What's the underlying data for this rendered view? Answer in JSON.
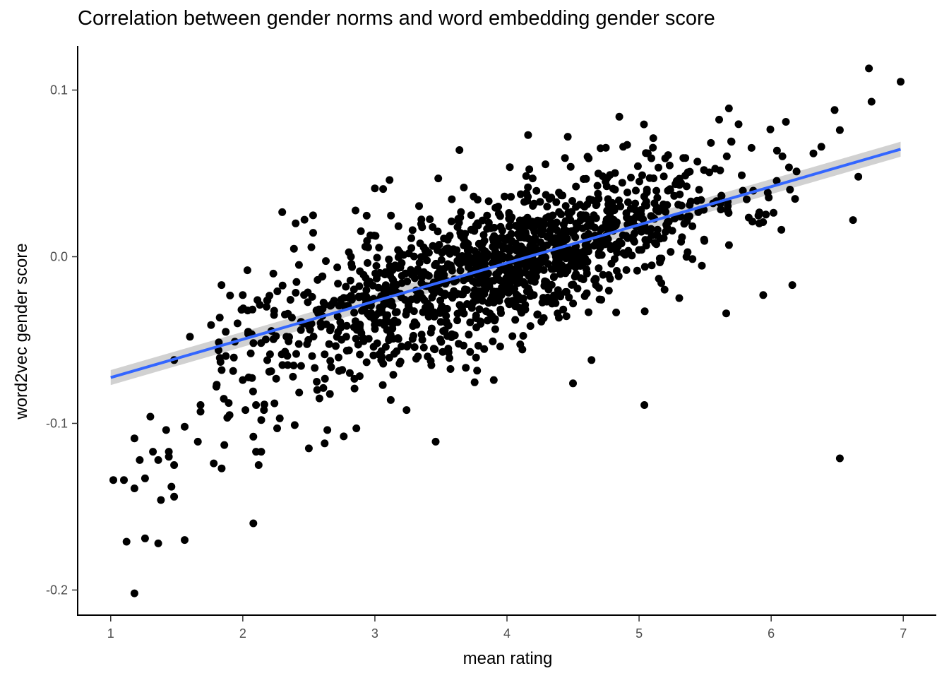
{
  "chart_data": {
    "type": "scatter",
    "title": "Correlation between gender norms and word embedding gender score",
    "xlabel": "mean rating",
    "ylabel": "word2vec gender score",
    "xlim": [
      0.75,
      7.25
    ],
    "ylim": [
      -0.2155,
      0.1265
    ],
    "x_ticks": [
      1,
      2,
      3,
      4,
      5,
      6,
      7
    ],
    "x_tick_labels": [
      "1",
      "2",
      "3",
      "4",
      "5",
      "6",
      "7"
    ],
    "y_ticks": [
      -0.2,
      -0.1,
      0.0,
      0.1
    ],
    "y_tick_labels": [
      "-0.2",
      "-0.1",
      "0.0",
      "0.1"
    ],
    "grid": false,
    "legend": "none",
    "point_color": "#000000",
    "fit_line": {
      "method": "linear",
      "color": "#3366FF",
      "band_color": "#BEBEBE",
      "x": [
        1.0,
        6.98
      ],
      "y": [
        -0.0725,
        0.0645
      ],
      "se_halfwidth": [
        0.0045,
        0.0045
      ]
    },
    "series": [
      {
        "outliers": [
          [
            1.02,
            -0.134
          ],
          [
            1.1,
            -0.134
          ],
          [
            1.18,
            -0.109
          ],
          [
            1.18,
            -0.139
          ],
          [
            1.12,
            -0.171
          ],
          [
            1.18,
            -0.202
          ],
          [
            1.22,
            -0.122
          ],
          [
            1.26,
            -0.133
          ],
          [
            1.26,
            -0.169
          ],
          [
            1.3,
            -0.096
          ],
          [
            1.32,
            -0.117
          ],
          [
            1.36,
            -0.122
          ],
          [
            1.36,
            -0.172
          ],
          [
            1.38,
            -0.146
          ],
          [
            1.42,
            -0.104
          ],
          [
            1.44,
            -0.117
          ],
          [
            1.44,
            -0.12
          ],
          [
            1.46,
            -0.138
          ],
          [
            1.48,
            -0.125
          ],
          [
            1.48,
            -0.144
          ],
          [
            1.48,
            -0.062
          ],
          [
            1.56,
            -0.102
          ],
          [
            1.56,
            -0.17
          ],
          [
            1.6,
            -0.048
          ],
          [
            1.66,
            -0.111
          ],
          [
            1.68,
            -0.089
          ],
          [
            1.68,
            -0.093
          ],
          [
            1.76,
            -0.041
          ],
          [
            1.78,
            -0.124
          ],
          [
            1.8,
            -0.078
          ],
          [
            1.84,
            -0.127
          ],
          [
            1.84,
            -0.068
          ],
          [
            1.86,
            -0.113
          ],
          [
            1.9,
            -0.095
          ],
          [
            1.94,
            -0.051
          ],
          [
            1.96,
            -0.04
          ],
          [
            2.0,
            -0.074
          ],
          [
            2.0,
            -0.023
          ],
          [
            2.02,
            -0.092
          ],
          [
            2.06,
            -0.058
          ],
          [
            2.08,
            -0.108
          ],
          [
            2.08,
            -0.16
          ],
          [
            2.1,
            -0.089
          ],
          [
            2.1,
            -0.117
          ],
          [
            2.12,
            -0.125
          ],
          [
            2.14,
            -0.098
          ],
          [
            2.14,
            -0.117
          ],
          [
            2.16,
            -0.092
          ],
          [
            2.18,
            -0.03
          ],
          [
            2.2,
            -0.069
          ],
          [
            2.24,
            -0.088
          ],
          [
            2.26,
            -0.103
          ],
          [
            2.28,
            -0.097
          ],
          [
            2.3,
            -0.065
          ],
          [
            2.32,
            -0.057
          ],
          [
            2.34,
            -0.065
          ],
          [
            2.38,
            -0.072
          ],
          [
            2.4,
            0.02
          ],
          [
            2.5,
            -0.115
          ],
          [
            2.56,
            -0.075
          ],
          [
            2.58,
            -0.085
          ],
          [
            2.62,
            -0.112
          ],
          [
            2.64,
            -0.104
          ],
          [
            2.86,
            -0.103
          ],
          [
            3.0,
            0.041
          ],
          [
            3.06,
            -0.077
          ],
          [
            3.12,
            -0.086
          ],
          [
            3.24,
            -0.092
          ],
          [
            3.46,
            -0.111
          ],
          [
            3.48,
            0.047
          ],
          [
            3.64,
            0.064
          ],
          [
            3.9,
            -0.074
          ],
          [
            4.16,
            0.073
          ],
          [
            4.46,
            0.072
          ],
          [
            4.5,
            -0.076
          ],
          [
            4.64,
            -0.062
          ],
          [
            4.88,
            0.066
          ],
          [
            5.04,
            -0.089
          ],
          [
            5.22,
            0.061
          ],
          [
            5.66,
            -0.034
          ],
          [
            5.68,
            0.089
          ],
          [
            5.7,
            0.069
          ],
          [
            5.94,
            -0.023
          ],
          [
            6.16,
            -0.017
          ],
          [
            6.32,
            0.062
          ],
          [
            6.38,
            0.066
          ],
          [
            6.48,
            0.088
          ],
          [
            6.52,
            -0.121
          ],
          [
            6.52,
            0.076
          ],
          [
            6.62,
            0.022
          ],
          [
            6.66,
            0.048
          ],
          [
            6.74,
            0.113
          ],
          [
            6.76,
            0.093
          ],
          [
            6.98,
            0.105
          ]
        ]
      }
    ]
  }
}
